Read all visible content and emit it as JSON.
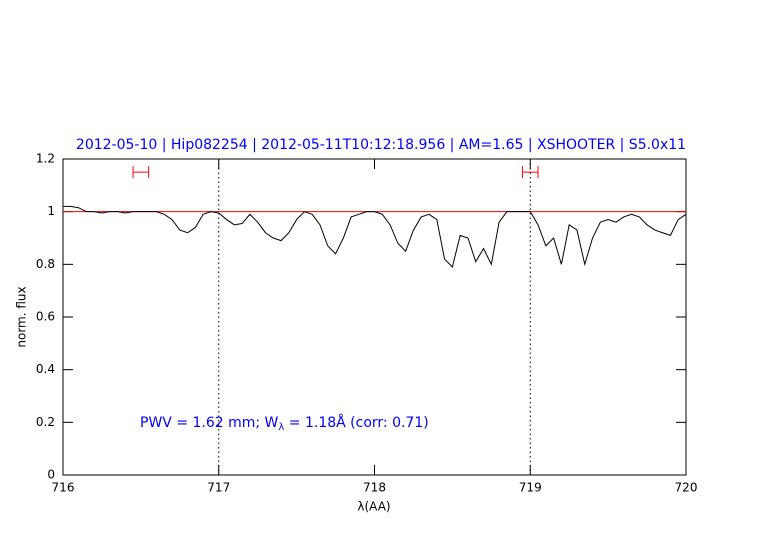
{
  "chart_data": {
    "type": "line",
    "title": "2012-05-10 | Hip082254 | 2012-05-11T10:12:18.956 | AM=1.65 | XSHOOTER | S5.0x11",
    "xlabel": "λ(AA)",
    "ylabel": "norm. flux",
    "annotation": [
      "PWV = 1.62 mm; W",
      "λ",
      " = 1.18Å (corr: 0.71)"
    ],
    "annotation_color": "#0000ff",
    "x": [
      716.0,
      716.05,
      716.1,
      716.15,
      716.2,
      716.25,
      716.3,
      716.35,
      716.4,
      716.45,
      716.5,
      716.55,
      716.6,
      716.65,
      716.7,
      716.75,
      716.8,
      716.85,
      716.9,
      716.95,
      717.0,
      717.05,
      717.1,
      717.15,
      717.2,
      717.25,
      717.3,
      717.35,
      717.4,
      717.45,
      717.5,
      717.55,
      717.6,
      717.65,
      717.7,
      717.75,
      717.8,
      717.85,
      717.9,
      717.95,
      718.0,
      718.05,
      718.1,
      718.15,
      718.2,
      718.25,
      718.3,
      718.35,
      718.4,
      718.45,
      718.5,
      718.55,
      718.6,
      718.65,
      718.7,
      718.75,
      718.8,
      718.85,
      718.9,
      718.95,
      719.0,
      719.05,
      719.1,
      719.15,
      719.2,
      719.25,
      719.3,
      719.35,
      719.4,
      719.45,
      719.5,
      719.55,
      719.6,
      719.65,
      719.7,
      719.75,
      719.8,
      719.85,
      719.9,
      719.95,
      720.0
    ],
    "series": [
      {
        "color": "#000000",
        "values": [
          1.02,
          1.02,
          1.015,
          1.0,
          1.0,
          0.995,
          1.0,
          1.0,
          0.995,
          1.0,
          1.0,
          1.0,
          1.0,
          0.99,
          0.97,
          0.93,
          0.92,
          0.94,
          0.99,
          1.0,
          0.995,
          0.97,
          0.95,
          0.955,
          0.99,
          0.96,
          0.92,
          0.9,
          0.89,
          0.92,
          0.97,
          1.0,
          0.99,
          0.95,
          0.87,
          0.84,
          0.9,
          0.98,
          0.99,
          1.0,
          1.0,
          0.99,
          0.95,
          0.88,
          0.85,
          0.93,
          0.98,
          0.99,
          0.97,
          0.82,
          0.79,
          0.91,
          0.9,
          0.81,
          0.86,
          0.8,
          0.96,
          1.0,
          1.0,
          1.0,
          1.0,
          0.95,
          0.87,
          0.9,
          0.8,
          0.95,
          0.93,
          0.8,
          0.9,
          0.96,
          0.97,
          0.96,
          0.98,
          0.99,
          0.98,
          0.95,
          0.93,
          0.92,
          0.91,
          0.97,
          0.99
        ]
      }
    ],
    "hline": {
      "value": 1,
      "color": "#ff0000"
    },
    "vlines": [
      717,
      719
    ],
    "markers": {
      "color": "#ff0000",
      "y": 1.15,
      "intervals": [
        [
          716.45,
          716.55
        ],
        [
          718.95,
          719.05
        ]
      ]
    },
    "xlim": [
      716,
      720
    ],
    "xticks": [
      716,
      717,
      718,
      719,
      720
    ],
    "ylim": [
      0,
      1.2
    ],
    "yticks": [
      0,
      0.2,
      0.4,
      0.6,
      0.8,
      1,
      1.2
    ]
  }
}
